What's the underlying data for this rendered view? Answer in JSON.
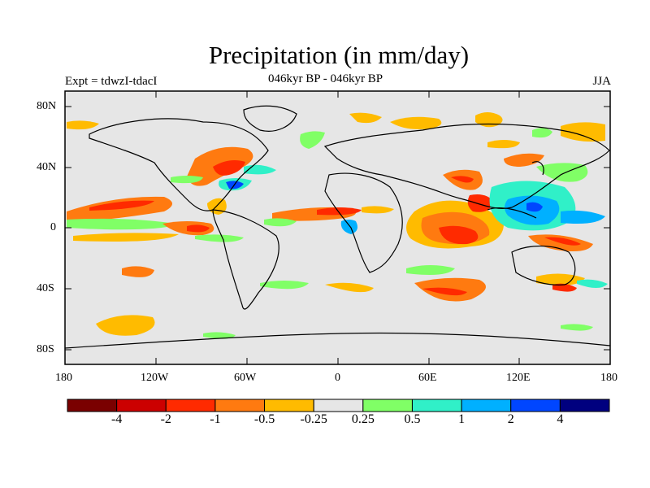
{
  "title": "Precipitation (in mm/day)",
  "subtitle_left": "Expt = tdwzI-tdacI",
  "subtitle_center": "046kyr BP - 046kyr BP",
  "subtitle_right": "JJA",
  "lat_labels": [
    "80N",
    "40N",
    "0",
    "40S",
    "80S"
  ],
  "lon_labels": [
    "180",
    "120W",
    "60W",
    "0",
    "60E",
    "120E",
    "180"
  ],
  "colorbar": {
    "colors": [
      "#7a0000",
      "#cc0000",
      "#ff2a00",
      "#ff7a10",
      "#ffbb00",
      "#e6e6e6",
      "#80ff66",
      "#30f0c8",
      "#00b0ff",
      "#0046ff",
      "#00007f"
    ],
    "labels": [
      "-4",
      "-2",
      "-1",
      "-0.5",
      "-0.25",
      "0.25",
      "0.5",
      "1",
      "2",
      "4"
    ]
  },
  "map_background": "#e6e6e6"
}
